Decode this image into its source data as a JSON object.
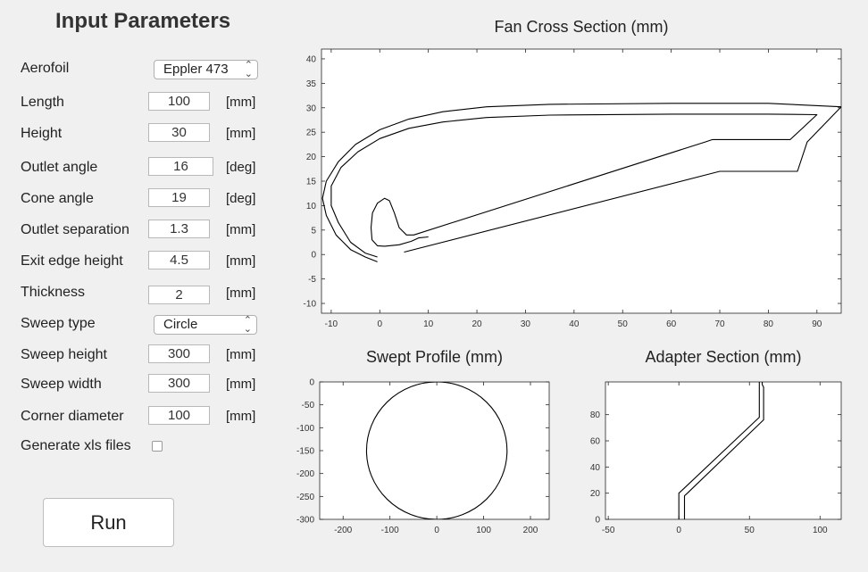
{
  "panel": {
    "title": "Input Parameters",
    "aerofoil": {
      "label": "Aerofoil",
      "value": "Eppler 473"
    },
    "fields": [
      {
        "label": "Length",
        "value": "100",
        "unit": "[mm]"
      },
      {
        "label": "Height",
        "value": "30",
        "unit": "[mm]"
      },
      {
        "label": "Outlet angle",
        "value": "16",
        "unit": "[deg]"
      },
      {
        "label": "Cone angle",
        "value": "19",
        "unit": "[deg]"
      },
      {
        "label": "Outlet separation",
        "value": "1.3",
        "unit": "[mm]"
      },
      {
        "label": "Exit edge height",
        "value": "4.5",
        "unit": "[mm]"
      },
      {
        "label": "Thickness",
        "value": "2",
        "unit": "[mm]"
      }
    ],
    "sweep_type": {
      "label": "Sweep type",
      "value": "Circle"
    },
    "sweep_fields": [
      {
        "label": "Sweep height",
        "value": "300",
        "unit": "[mm]"
      },
      {
        "label": "Sweep width",
        "value": "300",
        "unit": "[mm]"
      },
      {
        "label": "Corner diameter",
        "value": "100",
        "unit": "[mm]"
      }
    ],
    "xls": {
      "label": "Generate xls files",
      "checked": false
    },
    "run_label": "Run"
  },
  "chart_data": [
    {
      "type": "line",
      "title": "Fan Cross Section (mm)",
      "xlim": [
        -12,
        95
      ],
      "ylim": [
        -12,
        42
      ],
      "xticks": [
        -10,
        0,
        10,
        20,
        30,
        40,
        50,
        60,
        70,
        80,
        90
      ],
      "yticks": [
        -10,
        -5,
        0,
        5,
        10,
        15,
        20,
        25,
        30,
        35,
        40
      ],
      "series": [
        {
          "points": [
            [
              -0.5,
              -1.5
            ],
            [
              -3,
              -0.5
            ],
            [
              -6,
              1
            ],
            [
              -9,
              4
            ],
            [
              -11,
              8
            ],
            [
              -11.8,
              11.5
            ],
            [
              -11,
              15
            ],
            [
              -8.5,
              19
            ],
            [
              -5,
              22.5
            ],
            [
              0,
              25.5
            ],
            [
              6,
              27.7
            ],
            [
              13,
              29.2
            ],
            [
              22,
              30.2
            ],
            [
              35,
              30.7
            ],
            [
              60,
              30.9
            ],
            [
              80,
              30.9
            ],
            [
              95,
              30.2
            ],
            [
              88,
              23
            ],
            [
              86,
              17
            ],
            [
              70,
              17
            ],
            [
              5,
              0.5
            ]
          ]
        },
        {
          "points": [
            [
              -0.5,
              -0.5
            ],
            [
              -3,
              0.3
            ],
            [
              -6,
              2.5
            ],
            [
              -8.5,
              6.5
            ],
            [
              -10,
              10
            ],
            [
              -10,
              14
            ],
            [
              -8,
              17.8
            ],
            [
              -4.5,
              21
            ],
            [
              0,
              23.7
            ],
            [
              6,
              25.8
            ],
            [
              13,
              27.1
            ],
            [
              22,
              28
            ],
            [
              35,
              28.5
            ],
            [
              60,
              28.7
            ],
            [
              80,
              28.7
            ],
            [
              90,
              28.6
            ],
            [
              84.5,
              23.5
            ],
            [
              68.5,
              23.5
            ],
            [
              67,
              23
            ],
            [
              7,
              4
            ],
            [
              5.5,
              4
            ],
            [
              4,
              5.5
            ],
            [
              3,
              8.5
            ],
            [
              2,
              11
            ],
            [
              1,
              11.5
            ],
            [
              -0.5,
              10.5
            ],
            [
              -1.5,
              8.5
            ],
            [
              -1.8,
              5.5
            ],
            [
              -1.6,
              3
            ],
            [
              -0.5,
              1.8
            ],
            [
              1,
              1.7
            ],
            [
              4,
              2
            ],
            [
              6.5,
              2.7
            ],
            [
              8,
              3.4
            ],
            [
              10,
              3.6
            ]
          ]
        }
      ]
    },
    {
      "type": "line",
      "title": "Swept Profile (mm)",
      "xlim": [
        -250,
        240
      ],
      "ylim": [
        -300,
        0
      ],
      "xticks": [
        -200,
        -100,
        0,
        100,
        200
      ],
      "yticks": [
        0,
        -50,
        -100,
        -150,
        -200,
        -250,
        -300
      ],
      "series": [
        {
          "name": "",
          "shape": "circle",
          "center": [
            0,
            -150
          ],
          "radius": 150
        }
      ]
    },
    {
      "type": "line",
      "title": "Adapter Section (mm)",
      "xlim": [
        -52,
        115
      ],
      "ylim": [
        0,
        105
      ],
      "xticks": [
        -50,
        0,
        50,
        100
      ],
      "yticks": [
        0,
        20,
        40,
        60,
        80
      ],
      "series": [
        {
          "points": [
            [
              0,
              0
            ],
            [
              0,
              20
            ],
            [
              3,
              23
            ],
            [
              57,
              78
            ],
            [
              57,
              105
            ]
          ]
        },
        {
          "points": [
            [
              4,
              0
            ],
            [
              4,
              18
            ],
            [
              6,
              20
            ],
            [
              60,
              76
            ],
            [
              60,
              101
            ],
            [
              59,
              103
            ],
            [
              59,
              105
            ]
          ]
        }
      ]
    }
  ]
}
